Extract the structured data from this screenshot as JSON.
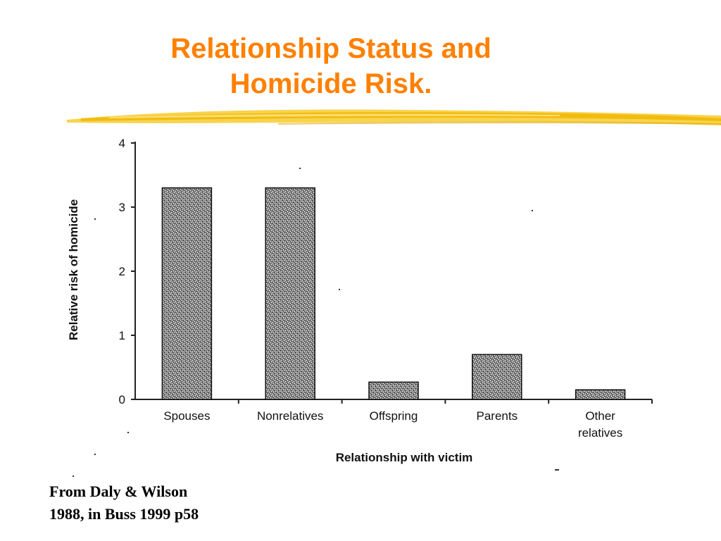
{
  "slide": {
    "title_line1": "Relationship Status and",
    "title_line2": "Homicide Risk.",
    "source_line1": "From Daly & Wilson",
    "source_line2": "1988, in Buss 1999 p58",
    "accent_color": "#ff8000",
    "brush_color": "#f5c518"
  },
  "chart_data": {
    "type": "bar",
    "title": "",
    "xlabel": "Relationship with victim",
    "ylabel": "Relative risk of homicide",
    "categories": [
      [
        "Spouses"
      ],
      [
        "Nonrelatives"
      ],
      [
        "Offspring"
      ],
      [
        "Parents"
      ],
      [
        "Other",
        "relatives"
      ]
    ],
    "values": [
      3.3,
      3.3,
      0.27,
      0.7,
      0.15
    ],
    "ylim": [
      0,
      4
    ],
    "yticks": [
      "0",
      "1",
      "2",
      "3",
      "4"
    ],
    "grid": false,
    "legend": "none",
    "bar_fill": "stippled grey"
  }
}
